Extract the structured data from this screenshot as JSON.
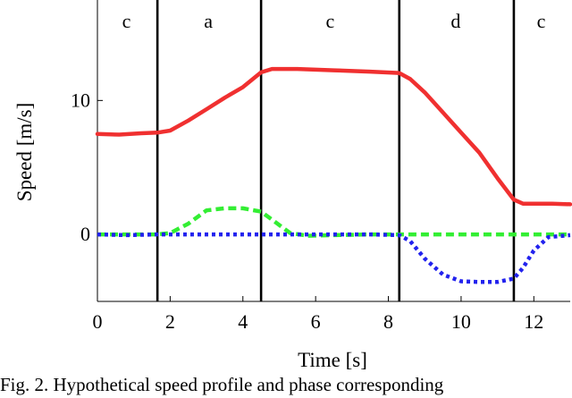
{
  "chart_data": {
    "type": "line",
    "xlabel": "Time [s]",
    "ylabel": "Speed [m/s]",
    "xlim": [
      0,
      13
    ],
    "ylim": [
      -5,
      17.5
    ],
    "xticks": [
      0,
      2,
      4,
      6,
      8,
      10,
      12
    ],
    "yticks": [
      0,
      10
    ],
    "grid": false,
    "phase_boundaries": [
      1.65,
      4.5,
      8.3,
      11.45
    ],
    "phases": [
      {
        "label": "c",
        "x": 0.8
      },
      {
        "label": "a",
        "x": 3.05
      },
      {
        "label": "c",
        "x": 6.4
      },
      {
        "label": "d",
        "x": 9.85
      },
      {
        "label": "c",
        "x": 12.2
      }
    ],
    "series": [
      {
        "color": "#f03030",
        "style": "solid",
        "points": [
          [
            0,
            7.5
          ],
          [
            0.6,
            7.45
          ],
          [
            1.2,
            7.55
          ],
          [
            1.65,
            7.6
          ],
          [
            2.0,
            7.75
          ],
          [
            2.5,
            8.5
          ],
          [
            3.0,
            9.35
          ],
          [
            3.5,
            10.2
          ],
          [
            4.0,
            11.0
          ],
          [
            4.5,
            12.1
          ],
          [
            4.8,
            12.35
          ],
          [
            5.5,
            12.35
          ],
          [
            6.5,
            12.25
          ],
          [
            7.5,
            12.15
          ],
          [
            8.3,
            12.05
          ],
          [
            8.6,
            11.6
          ],
          [
            9.0,
            10.6
          ],
          [
            9.5,
            9.1
          ],
          [
            10.0,
            7.6
          ],
          [
            10.5,
            6.1
          ],
          [
            11.0,
            4.2
          ],
          [
            11.45,
            2.6
          ],
          [
            11.7,
            2.3
          ],
          [
            12.5,
            2.3
          ],
          [
            13,
            2.25
          ]
        ]
      },
      {
        "color": "#33ee33",
        "style": "dashed",
        "points": [
          [
            0,
            0
          ],
          [
            1.65,
            0
          ],
          [
            2.0,
            0.1
          ],
          [
            2.5,
            0.8
          ],
          [
            3.0,
            1.8
          ],
          [
            3.5,
            1.95
          ],
          [
            4.0,
            1.95
          ],
          [
            4.5,
            1.7
          ],
          [
            4.9,
            0.9
          ],
          [
            5.3,
            0.1
          ],
          [
            5.8,
            -0.1
          ],
          [
            6.5,
            -0.05
          ],
          [
            7.5,
            0
          ],
          [
            8.3,
            0
          ],
          [
            10,
            0
          ],
          [
            11.45,
            0
          ],
          [
            13,
            0
          ]
        ]
      },
      {
        "color": "#2222ee",
        "style": "dotted",
        "points": [
          [
            0,
            0
          ],
          [
            0.8,
            -0.05
          ],
          [
            1.65,
            0
          ],
          [
            3,
            0
          ],
          [
            4.5,
            0
          ],
          [
            6,
            0
          ],
          [
            7.5,
            0
          ],
          [
            8.3,
            -0.05
          ],
          [
            8.6,
            -0.5
          ],
          [
            9.0,
            -1.8
          ],
          [
            9.5,
            -3.0
          ],
          [
            10.0,
            -3.5
          ],
          [
            10.5,
            -3.55
          ],
          [
            11.0,
            -3.55
          ],
          [
            11.45,
            -3.3
          ],
          [
            11.7,
            -2.5
          ],
          [
            12.0,
            -1.2
          ],
          [
            12.4,
            -0.2
          ],
          [
            13,
            -0.05
          ]
        ]
      }
    ]
  },
  "caption": "Fig. 2.  Hypothetical speed profile and phase corresponding"
}
